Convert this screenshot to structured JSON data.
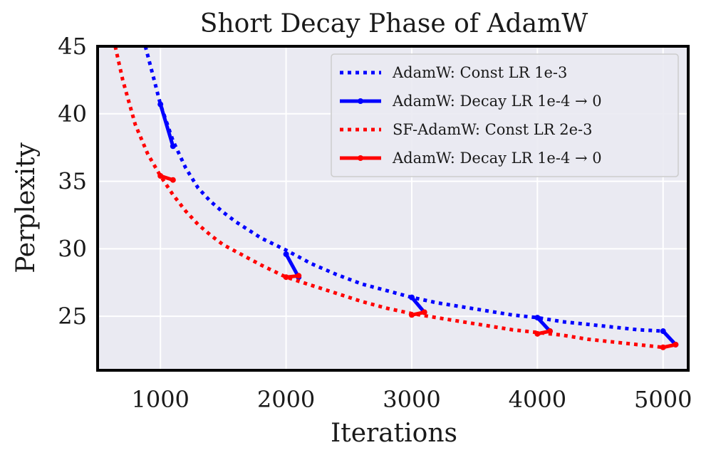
{
  "chart_data": {
    "type": "line",
    "title": "Short Decay Phase of AdamW",
    "xlabel": "Iterations",
    "ylabel": "Perplexity",
    "xlim": [
      500,
      5200
    ],
    "ylim": [
      21,
      45
    ],
    "xticks": [
      1000,
      2000,
      3000,
      4000,
      5000
    ],
    "yticks": [
      25,
      30,
      35,
      40,
      45
    ],
    "grid": true,
    "legend_position": "top-right",
    "series": [
      {
        "name": "AdamW: Const LR 1e-3",
        "style": "dotted",
        "color": "#0000ff",
        "x": [
          880,
          950,
          1000,
          1100,
          1200,
          1300,
          1400,
          1500,
          1600,
          1800,
          2000,
          2200,
          2400,
          2600,
          2800,
          3000,
          3200,
          3400,
          3600,
          3800,
          4000,
          4200,
          4400,
          4600,
          4800,
          5000
        ],
        "y": [
          45,
          42.5,
          40.7,
          38.0,
          36.0,
          34.5,
          33.5,
          32.7,
          32.0,
          30.8,
          29.9,
          28.9,
          28.1,
          27.4,
          26.9,
          26.4,
          26.0,
          25.7,
          25.4,
          25.1,
          24.9,
          24.6,
          24.4,
          24.2,
          24.0,
          23.9
        ]
      },
      {
        "name": "AdamW: Decay LR 1e-4 → 0",
        "style": "solid-marker",
        "color": "#0000ff",
        "segments": [
          {
            "x": [
              1000,
              1100
            ],
            "y": [
              40.7,
              37.6
            ]
          },
          {
            "x": [
              2000,
              2100
            ],
            "y": [
              29.6,
              27.9
            ]
          },
          {
            "x": [
              3000,
              3100
            ],
            "y": [
              26.4,
              25.3
            ]
          },
          {
            "x": [
              4000,
              4100
            ],
            "y": [
              24.9,
              23.9
            ]
          },
          {
            "x": [
              5000,
              5100
            ],
            "y": [
              23.9,
              22.9
            ]
          }
        ]
      },
      {
        "name": "SF-AdamW: Const LR 2e-3",
        "style": "dotted",
        "color": "#ff0000",
        "x": [
          640,
          700,
          800,
          900,
          1000,
          1100,
          1200,
          1300,
          1400,
          1500,
          1600,
          1800,
          2000,
          2200,
          2400,
          2600,
          2800,
          3000,
          3200,
          3400,
          3600,
          3800,
          4000,
          4200,
          4400,
          4600,
          4800,
          5000
        ],
        "y": [
          45,
          42.5,
          39.2,
          37.0,
          35.4,
          34.0,
          32.8,
          31.8,
          31.0,
          30.3,
          29.8,
          28.8,
          27.9,
          27.3,
          26.7,
          26.1,
          25.6,
          25.2,
          24.9,
          24.6,
          24.3,
          24.0,
          23.8,
          23.6,
          23.3,
          23.1,
          22.9,
          22.7
        ]
      },
      {
        "name": "AdamW: Decay LR 1e-4 → 0",
        "style": "solid-marker",
        "color": "#ff0000",
        "segments": [
          {
            "x": [
              1000,
              1100
            ],
            "y": [
              35.4,
              35.1
            ]
          },
          {
            "x": [
              2000,
              2100
            ],
            "y": [
              27.9,
              28.0
            ]
          },
          {
            "x": [
              3000,
              3100
            ],
            "y": [
              25.1,
              25.3
            ]
          },
          {
            "x": [
              4000,
              4100
            ],
            "y": [
              23.7,
              23.9
            ]
          },
          {
            "x": [
              5000,
              5100
            ],
            "y": [
              22.7,
              22.9
            ]
          }
        ]
      }
    ]
  }
}
